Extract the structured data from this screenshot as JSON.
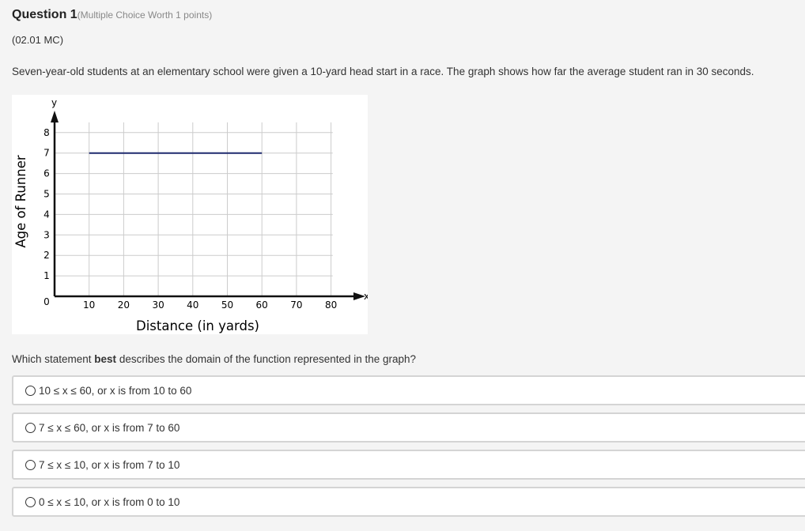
{
  "question": {
    "title": "Question 1",
    "worth": "(Multiple Choice Worth 1 points)",
    "code": "(02.01 MC)",
    "prompt": "Seven-year-old students at an elementary school were given a 10-yard head start in a race. The graph shows how far the average student ran in 30 seconds.",
    "ask_before": "Which statement ",
    "ask_bold": "best",
    "ask_after": " describes the domain of the function represented in the graph?"
  },
  "options": [
    "10 ≤ x ≤ 60, or x is from 10 to 60",
    "7 ≤ x ≤ 60, or x is from 7 to 60",
    "7 ≤ x ≤ 10, or x is from 7 to 10",
    "0 ≤ x ≤ 10, or x is from 0 to 10"
  ],
  "chart_data": {
    "type": "line",
    "xlabel": "Distance (in yards)",
    "ylabel": "Age of Runner",
    "x_axis_letter": "x",
    "y_axis_letter": "y",
    "xlim": [
      0,
      80
    ],
    "ylim": [
      0,
      8
    ],
    "x_ticks": [
      "10",
      "20",
      "30",
      "40",
      "50",
      "60",
      "70",
      "80"
    ],
    "y_ticks": [
      "0",
      "1",
      "2",
      "3",
      "4",
      "5",
      "6",
      "7",
      "8"
    ],
    "grid": true,
    "series": [
      {
        "x": [
          10,
          60
        ],
        "y": [
          7,
          7
        ],
        "color": "#1f2a6e"
      }
    ]
  }
}
